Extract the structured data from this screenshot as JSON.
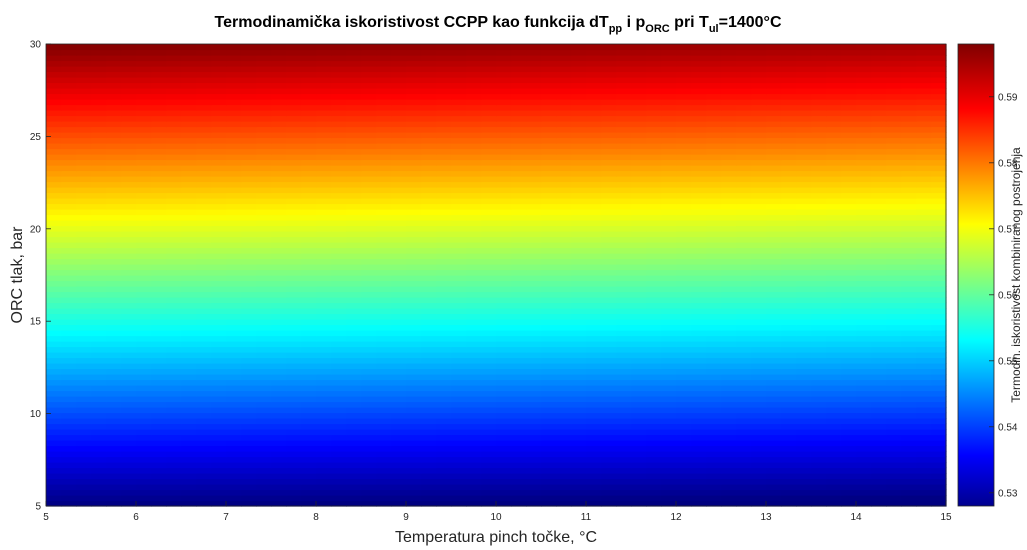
{
  "chart_data": {
    "type": "heatmap",
    "title": {
      "prefix": "Termodinamička iskoristivost CCPP kao funkcija dT",
      "sub1": "pp",
      "mid1": " i p",
      "sub2": "ORC",
      "mid2": " pri T",
      "sub3": "ul",
      "suffix": "=1400°C"
    },
    "xlabel": "Temperatura pinch točke, °C",
    "ylabel": "ORC tlak, bar",
    "colorbar_label": "Termodin. iskoristivost kombiniranog postrojenja",
    "xlim": [
      5,
      15
    ],
    "ylim": [
      5,
      30
    ],
    "clim": [
      0.528,
      0.598
    ],
    "x_ticks": [
      "5",
      "6",
      "7",
      "8",
      "9",
      "10",
      "11",
      "12",
      "13",
      "14",
      "15"
    ],
    "y_ticks": [
      "5",
      "10",
      "15",
      "20",
      "25",
      "30"
    ],
    "colorbar_ticks": [
      "0.53",
      "0.54",
      "0.55",
      "0.56",
      "0.57",
      "0.58",
      "0.59"
    ],
    "colormap": "jet",
    "surface": {
      "x": [
        5,
        15
      ],
      "y": [
        5,
        30
      ],
      "value_at_x5": [
        0.528,
        0.598
      ],
      "value_at_x15": [
        0.527,
        0.5955
      ],
      "note": "efficiency increases roughly linearly with ORC pressure and decreases slightly with pinch temperature"
    }
  }
}
